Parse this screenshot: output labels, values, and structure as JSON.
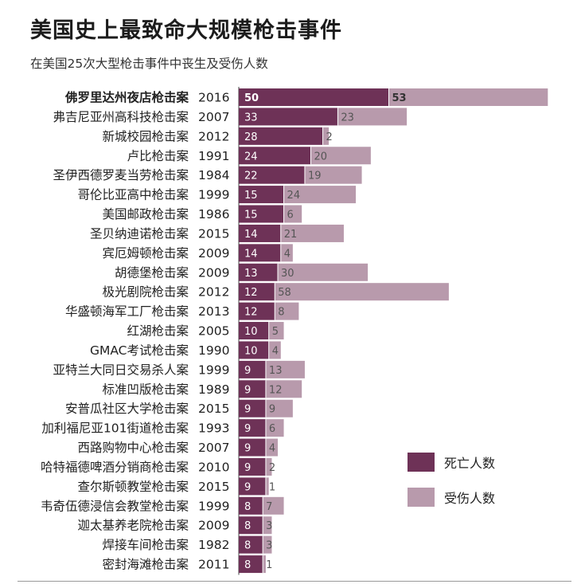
{
  "title": "美国史上最致命大规模枪击事件",
  "subtitle": "在美国25次大型枪击事件中丧生及受伤人数",
  "colors": {
    "deaths": "#6e3257",
    "injuries": "#b89aac",
    "deaths_label": "#ffffff",
    "injuries_label": "#555555"
  },
  "legend": [
    {
      "key": "deaths",
      "label": "死亡人数"
    },
    {
      "key": "injuries",
      "label": "受伤人数"
    }
  ],
  "chart_data": {
    "type": "bar",
    "orientation": "horizontal",
    "stacked": true,
    "title": "美国史上最致命大规模枪击事件",
    "subtitle": "在美国25次大型枪击事件中丧生及受伤人数",
    "categories": [
      "佛罗里达州夜店枪击案",
      "弗吉尼亚州高科技枪击案",
      "新城校园枪击案",
      "卢比枪击案",
      "圣伊西德罗麦当劳枪击案",
      "哥伦比亚高中枪击案",
      "美国邮政枪击案",
      "圣贝纳迪诺枪击案",
      "宾厄姆顿枪击案",
      "胡德堡枪击案",
      "极光剧院枪击案",
      "华盛顿海军工厂枪击案",
      "红湖枪击案",
      "GMAC考试枪击案",
      "亚特兰大同日交易杀人案",
      "标准凹版枪击案",
      "安普瓜社区大学枪击案",
      "加利福尼亚101街道枪击案",
      "西路购物中心枪击案",
      "哈特福德啤酒分销商枪击案",
      "查尔斯顿教堂枪击案",
      "韦奇伍德浸信会教堂枪击案",
      "迦太基养老院枪击案",
      "焊接车间枪击案",
      "密封海滩枪击案"
    ],
    "years": [
      "2016",
      "2007",
      "2012",
      "1991",
      "1984",
      "1999",
      "1986",
      "2015",
      "2009",
      "2009",
      "2012",
      "2013",
      "2005",
      "1990",
      "1999",
      "1989",
      "2015",
      "1993",
      "2007",
      "2010",
      "2015",
      "1999",
      "2009",
      "1982",
      "2011"
    ],
    "highlight_index": 0,
    "series": [
      {
        "name": "死亡人数",
        "values": [
          50,
          33,
          28,
          24,
          22,
          15,
          15,
          14,
          14,
          13,
          12,
          12,
          10,
          10,
          9,
          9,
          9,
          9,
          9,
          9,
          9,
          8,
          8,
          8,
          8
        ]
      },
      {
        "name": "受伤人数",
        "values": [
          53,
          23,
          2,
          20,
          19,
          24,
          6,
          21,
          4,
          30,
          58,
          8,
          5,
          4,
          13,
          12,
          9,
          6,
          4,
          2,
          1,
          7,
          3,
          3,
          1
        ]
      }
    ],
    "legend_position": "right",
    "grid": false
  }
}
